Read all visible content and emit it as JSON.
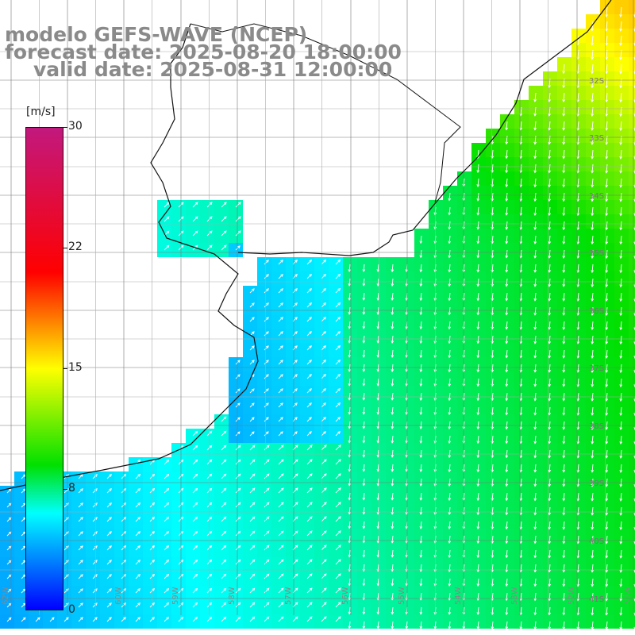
{
  "title": {
    "model": "modelo GEFS-WAVE (NCEP)",
    "forecast": "forecast date: 2025-08-20 18:00:00",
    "valid": "valid date: 2025-08-31 12:00:00"
  },
  "colorbar": {
    "unit": "[m/s]",
    "ticks": [
      "30",
      "22",
      "15",
      "8",
      "0"
    ],
    "colors": [
      "#c2187e",
      "#ff0000",
      "#ffff00",
      "#00e000",
      "#00ffff",
      "#0000ff"
    ]
  },
  "grid": {
    "lat_labels": [
      "32S",
      "33S",
      "34S",
      "35S",
      "36S",
      "37S",
      "38S",
      "39S",
      "40S",
      "41S"
    ],
    "lon_labels": [
      "62W",
      "61W",
      "60W",
      "59W",
      "58W",
      "57W",
      "56W",
      "55W",
      "54W",
      "53W",
      "52W",
      "51W"
    ]
  }
}
